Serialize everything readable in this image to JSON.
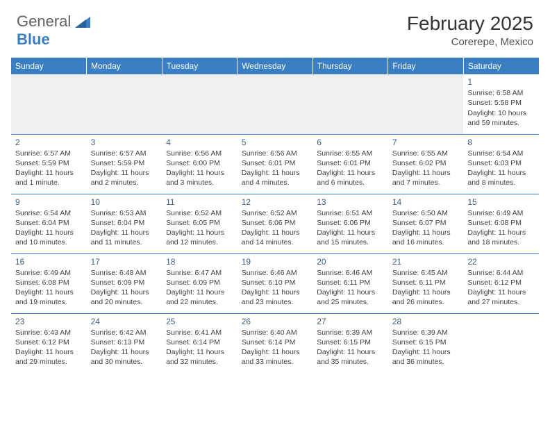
{
  "logo": {
    "text1": "General",
    "text2": "Blue"
  },
  "title": "February 2025",
  "location": "Corerepe, Mexico",
  "header_bg": "#3a7fc4",
  "header_fg": "#ffffff",
  "border_color": "#3a7fc4",
  "days": [
    "Sunday",
    "Monday",
    "Tuesday",
    "Wednesday",
    "Thursday",
    "Friday",
    "Saturday"
  ],
  "weeks": [
    [
      null,
      null,
      null,
      null,
      null,
      null,
      {
        "n": "1",
        "sr": "Sunrise: 6:58 AM",
        "ss": "Sunset: 5:58 PM",
        "dl": "Daylight: 10 hours and 59 minutes."
      }
    ],
    [
      {
        "n": "2",
        "sr": "Sunrise: 6:57 AM",
        "ss": "Sunset: 5:59 PM",
        "dl": "Daylight: 11 hours and 1 minute."
      },
      {
        "n": "3",
        "sr": "Sunrise: 6:57 AM",
        "ss": "Sunset: 5:59 PM",
        "dl": "Daylight: 11 hours and 2 minutes."
      },
      {
        "n": "4",
        "sr": "Sunrise: 6:56 AM",
        "ss": "Sunset: 6:00 PM",
        "dl": "Daylight: 11 hours and 3 minutes."
      },
      {
        "n": "5",
        "sr": "Sunrise: 6:56 AM",
        "ss": "Sunset: 6:01 PM",
        "dl": "Daylight: 11 hours and 4 minutes."
      },
      {
        "n": "6",
        "sr": "Sunrise: 6:55 AM",
        "ss": "Sunset: 6:01 PM",
        "dl": "Daylight: 11 hours and 6 minutes."
      },
      {
        "n": "7",
        "sr": "Sunrise: 6:55 AM",
        "ss": "Sunset: 6:02 PM",
        "dl": "Daylight: 11 hours and 7 minutes."
      },
      {
        "n": "8",
        "sr": "Sunrise: 6:54 AM",
        "ss": "Sunset: 6:03 PM",
        "dl": "Daylight: 11 hours and 8 minutes."
      }
    ],
    [
      {
        "n": "9",
        "sr": "Sunrise: 6:54 AM",
        "ss": "Sunset: 6:04 PM",
        "dl": "Daylight: 11 hours and 10 minutes."
      },
      {
        "n": "10",
        "sr": "Sunrise: 6:53 AM",
        "ss": "Sunset: 6:04 PM",
        "dl": "Daylight: 11 hours and 11 minutes."
      },
      {
        "n": "11",
        "sr": "Sunrise: 6:52 AM",
        "ss": "Sunset: 6:05 PM",
        "dl": "Daylight: 11 hours and 12 minutes."
      },
      {
        "n": "12",
        "sr": "Sunrise: 6:52 AM",
        "ss": "Sunset: 6:06 PM",
        "dl": "Daylight: 11 hours and 14 minutes."
      },
      {
        "n": "13",
        "sr": "Sunrise: 6:51 AM",
        "ss": "Sunset: 6:06 PM",
        "dl": "Daylight: 11 hours and 15 minutes."
      },
      {
        "n": "14",
        "sr": "Sunrise: 6:50 AM",
        "ss": "Sunset: 6:07 PM",
        "dl": "Daylight: 11 hours and 16 minutes."
      },
      {
        "n": "15",
        "sr": "Sunrise: 6:49 AM",
        "ss": "Sunset: 6:08 PM",
        "dl": "Daylight: 11 hours and 18 minutes."
      }
    ],
    [
      {
        "n": "16",
        "sr": "Sunrise: 6:49 AM",
        "ss": "Sunset: 6:08 PM",
        "dl": "Daylight: 11 hours and 19 minutes."
      },
      {
        "n": "17",
        "sr": "Sunrise: 6:48 AM",
        "ss": "Sunset: 6:09 PM",
        "dl": "Daylight: 11 hours and 20 minutes."
      },
      {
        "n": "18",
        "sr": "Sunrise: 6:47 AM",
        "ss": "Sunset: 6:09 PM",
        "dl": "Daylight: 11 hours and 22 minutes."
      },
      {
        "n": "19",
        "sr": "Sunrise: 6:46 AM",
        "ss": "Sunset: 6:10 PM",
        "dl": "Daylight: 11 hours and 23 minutes."
      },
      {
        "n": "20",
        "sr": "Sunrise: 6:46 AM",
        "ss": "Sunset: 6:11 PM",
        "dl": "Daylight: 11 hours and 25 minutes."
      },
      {
        "n": "21",
        "sr": "Sunrise: 6:45 AM",
        "ss": "Sunset: 6:11 PM",
        "dl": "Daylight: 11 hours and 26 minutes."
      },
      {
        "n": "22",
        "sr": "Sunrise: 6:44 AM",
        "ss": "Sunset: 6:12 PM",
        "dl": "Daylight: 11 hours and 27 minutes."
      }
    ],
    [
      {
        "n": "23",
        "sr": "Sunrise: 6:43 AM",
        "ss": "Sunset: 6:12 PM",
        "dl": "Daylight: 11 hours and 29 minutes."
      },
      {
        "n": "24",
        "sr": "Sunrise: 6:42 AM",
        "ss": "Sunset: 6:13 PM",
        "dl": "Daylight: 11 hours and 30 minutes."
      },
      {
        "n": "25",
        "sr": "Sunrise: 6:41 AM",
        "ss": "Sunset: 6:14 PM",
        "dl": "Daylight: 11 hours and 32 minutes."
      },
      {
        "n": "26",
        "sr": "Sunrise: 6:40 AM",
        "ss": "Sunset: 6:14 PM",
        "dl": "Daylight: 11 hours and 33 minutes."
      },
      {
        "n": "27",
        "sr": "Sunrise: 6:39 AM",
        "ss": "Sunset: 6:15 PM",
        "dl": "Daylight: 11 hours and 35 minutes."
      },
      {
        "n": "28",
        "sr": "Sunrise: 6:39 AM",
        "ss": "Sunset: 6:15 PM",
        "dl": "Daylight: 11 hours and 36 minutes."
      },
      null
    ]
  ]
}
